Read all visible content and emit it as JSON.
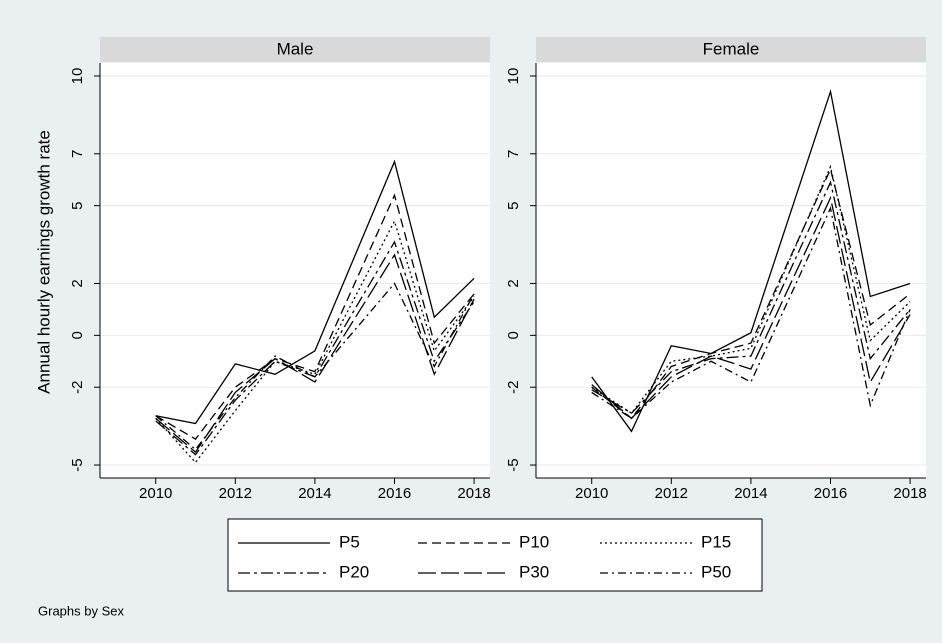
{
  "note": "Graphs by Sex",
  "chart_data": [
    {
      "type": "line",
      "title": "Male",
      "y_label": "Annual hourly earnings growth rate",
      "x": [
        2010,
        2011,
        2012,
        2013,
        2014,
        2016,
        2017,
        2018
      ],
      "xlim": [
        2008.6,
        2018.4
      ],
      "xticks": [
        2010,
        2012,
        2014,
        2016,
        2018
      ],
      "ylim": [
        -5.5,
        10.5
      ],
      "yticks": [
        -5,
        -2,
        0,
        2,
        5,
        7,
        10
      ],
      "grid": true,
      "series": [
        {
          "name": "P5",
          "color": "#000000",
          "values": [
            -3.1,
            -3.4,
            -1.1,
            -1.5,
            -0.6,
            6.7,
            0.7,
            2.2
          ]
        },
        {
          "name": "P10",
          "color": "#000000",
          "values": [
            -3.1,
            -4.0,
            -2.0,
            -0.9,
            -1.4,
            5.4,
            -0.3,
            1.6
          ]
        },
        {
          "name": "P15",
          "color": "#000000",
          "values": [
            -3.2,
            -4.9,
            -2.9,
            -1.0,
            -1.5,
            4.4,
            -0.6,
            1.5
          ]
        },
        {
          "name": "P20",
          "color": "#000000",
          "values": [
            -3.3,
            -4.6,
            -2.5,
            -1.0,
            -1.6,
            3.6,
            -1.0,
            1.3
          ]
        },
        {
          "name": "P30",
          "color": "#000000",
          "values": [
            -3.2,
            -4.5,
            -2.2,
            -0.9,
            -1.8,
            3.1,
            -1.5,
            1.4
          ]
        },
        {
          "name": "P50",
          "color": "#000000",
          "values": [
            -3.1,
            -4.4,
            -2.4,
            -0.8,
            -1.6,
            2.0,
            -1.2,
            1.6
          ]
        }
      ]
    },
    {
      "type": "line",
      "title": "Female",
      "x": [
        2010,
        2011,
        2012,
        2013,
        2014,
        2016,
        2017,
        2018
      ],
      "xlim": [
        2008.6,
        2018.4
      ],
      "xticks": [
        2010,
        2012,
        2014,
        2016,
        2018
      ],
      "ylim": [
        -5.5,
        10.5
      ],
      "yticks": [
        -5,
        -2,
        0,
        2,
        5,
        7,
        10
      ],
      "grid": true,
      "series": [
        {
          "name": "P5",
          "color": "#000000",
          "values": [
            -1.6,
            -3.7,
            -0.4,
            -0.7,
            0.1,
            9.4,
            1.5,
            2.0
          ]
        },
        {
          "name": "P10",
          "color": "#000000",
          "values": [
            -2.0,
            -3.2,
            -1.2,
            -0.7,
            -0.3,
            6.4,
            0.4,
            1.6
          ]
        },
        {
          "name": "P15",
          "color": "#000000",
          "values": [
            -2.0,
            -3.0,
            -1.0,
            -0.8,
            -0.5,
            6.5,
            -0.2,
            1.3
          ]
        },
        {
          "name": "P20",
          "color": "#000000",
          "values": [
            -2.1,
            -3.0,
            -1.4,
            -0.9,
            -0.8,
            5.9,
            -0.9,
            1.0
          ]
        },
        {
          "name": "P30",
          "color": "#000000",
          "values": [
            -1.9,
            -3.2,
            -1.6,
            -0.8,
            -1.3,
            5.3,
            -1.8,
            0.8
          ]
        },
        {
          "name": "P50",
          "color": "#000000",
          "values": [
            -2.2,
            -3.2,
            -1.8,
            -1.0,
            -1.8,
            4.9,
            -2.7,
            1.0
          ]
        }
      ]
    }
  ]
}
